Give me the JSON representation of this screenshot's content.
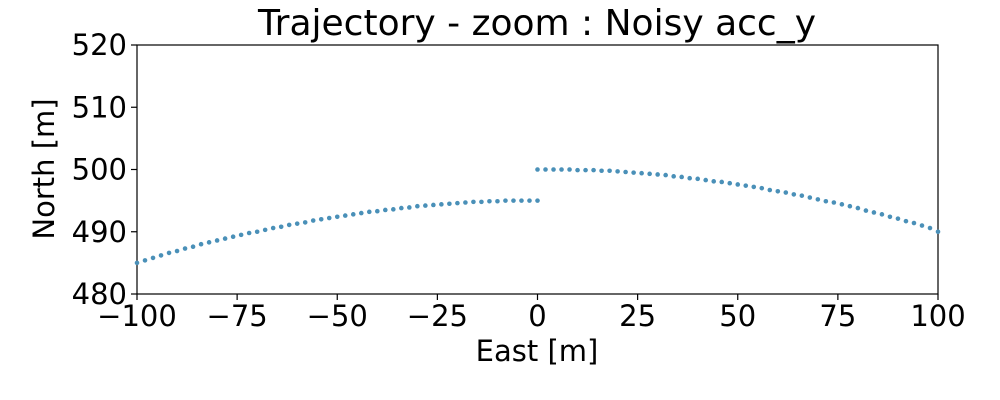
{
  "chart_data": {
    "type": "scatter",
    "title": "Trajectory - zoom : Noisy acc_y",
    "xlabel": "East [m]",
    "ylabel": "North [m]",
    "xlim": [
      -100,
      100
    ],
    "ylim": [
      480,
      520
    ],
    "xticks": [
      -100,
      -75,
      -50,
      -25,
      0,
      25,
      50,
      75,
      100
    ],
    "xtick_labels": [
      "−100",
      "−75",
      "−50",
      "−25",
      "0",
      "25",
      "50",
      "75",
      "100"
    ],
    "yticks": [
      480,
      490,
      500,
      510,
      520
    ],
    "ytick_labels": [
      "480",
      "490",
      "500",
      "510",
      "520"
    ],
    "grid": false,
    "series": [
      {
        "color": "#4a90b8",
        "points": [
          [
            -100,
            485.0
          ],
          [
            -98,
            485.4
          ],
          [
            -96,
            485.8
          ],
          [
            -94,
            486.2
          ],
          [
            -92,
            486.6
          ],
          [
            -90,
            486.9
          ],
          [
            -88,
            487.3
          ],
          [
            -86,
            487.6
          ],
          [
            -84,
            488.0
          ],
          [
            -82,
            488.3
          ],
          [
            -80,
            488.6
          ],
          [
            -78,
            488.9
          ],
          [
            -76,
            489.2
          ],
          [
            -74,
            489.5
          ],
          [
            -72,
            489.8
          ],
          [
            -70,
            490.0
          ],
          [
            -68,
            490.3
          ],
          [
            -66,
            490.6
          ],
          [
            -64,
            490.8
          ],
          [
            -62,
            491.1
          ],
          [
            -60,
            491.3
          ],
          [
            -58,
            491.5
          ],
          [
            -56,
            491.8
          ],
          [
            -54,
            492.0
          ],
          [
            -52,
            492.2
          ],
          [
            -50,
            492.4
          ],
          [
            -48,
            492.6
          ],
          [
            -46,
            492.8
          ],
          [
            -44,
            493.0
          ],
          [
            -42,
            493.2
          ],
          [
            -40,
            493.3
          ],
          [
            -38,
            493.5
          ],
          [
            -36,
            493.6
          ],
          [
            -34,
            493.8
          ],
          [
            -32,
            493.9
          ],
          [
            -30,
            494.1
          ],
          [
            -28,
            494.2
          ],
          [
            -26,
            494.3
          ],
          [
            -24,
            494.4
          ],
          [
            -22,
            494.5
          ],
          [
            -20,
            494.6
          ],
          [
            -18,
            494.7
          ],
          [
            -16,
            494.8
          ],
          [
            -14,
            494.8
          ],
          [
            -12,
            494.9
          ],
          [
            -10,
            494.9
          ],
          [
            -8,
            495.0
          ],
          [
            -6,
            495.0
          ],
          [
            -4,
            495.0
          ],
          [
            -2,
            495.0
          ],
          [
            0,
            495.0
          ]
        ]
      },
      {
        "color": "#4a90b8",
        "points": [
          [
            0,
            500.0
          ],
          [
            2,
            500.0
          ],
          [
            4,
            500.0
          ],
          [
            6,
            500.0
          ],
          [
            8,
            500.0
          ],
          [
            10,
            499.9
          ],
          [
            12,
            499.9
          ],
          [
            14,
            499.9
          ],
          [
            16,
            499.8
          ],
          [
            18,
            499.8
          ],
          [
            20,
            499.7
          ],
          [
            22,
            499.6
          ],
          [
            24,
            499.5
          ],
          [
            26,
            499.4
          ],
          [
            28,
            499.3
          ],
          [
            30,
            499.2
          ],
          [
            32,
            499.1
          ],
          [
            34,
            498.9
          ],
          [
            36,
            498.8
          ],
          [
            38,
            498.6
          ],
          [
            40,
            498.5
          ],
          [
            42,
            498.3
          ],
          [
            44,
            498.1
          ],
          [
            46,
            498.0
          ],
          [
            48,
            497.8
          ],
          [
            50,
            497.6
          ],
          [
            52,
            497.4
          ],
          [
            54,
            497.2
          ],
          [
            56,
            497.0
          ],
          [
            58,
            496.7
          ],
          [
            60,
            496.5
          ],
          [
            62,
            496.3
          ],
          [
            64,
            496.0
          ],
          [
            66,
            495.8
          ],
          [
            68,
            495.5
          ],
          [
            70,
            495.2
          ],
          [
            72,
            494.9
          ],
          [
            74,
            494.7
          ],
          [
            76,
            494.4
          ],
          [
            78,
            494.1
          ],
          [
            80,
            493.8
          ],
          [
            82,
            493.4
          ],
          [
            84,
            493.1
          ],
          [
            86,
            492.8
          ],
          [
            88,
            492.4
          ],
          [
            90,
            492.1
          ],
          [
            92,
            491.7
          ],
          [
            94,
            491.4
          ],
          [
            96,
            491.0
          ],
          [
            98,
            490.6
          ],
          [
            100,
            490.0
          ]
        ]
      }
    ]
  }
}
